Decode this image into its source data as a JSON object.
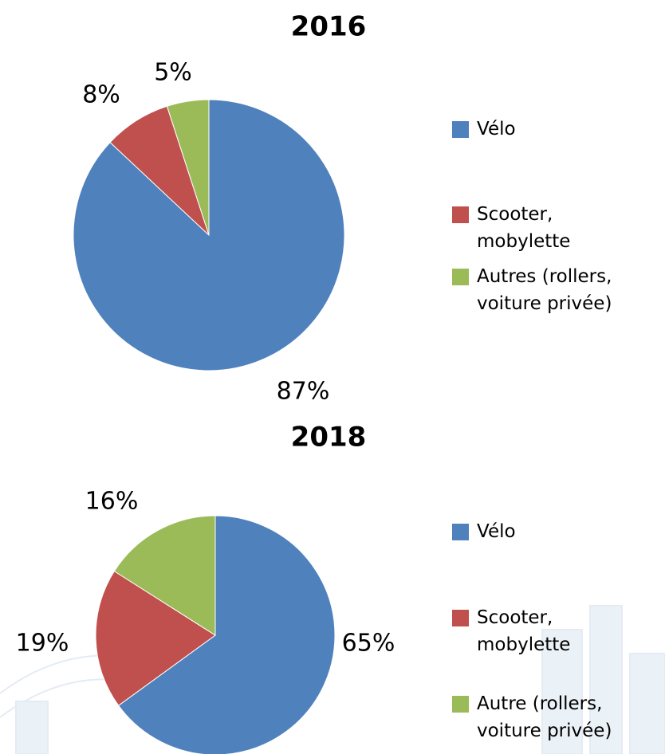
{
  "chart_data": [
    {
      "type": "pie",
      "title": "2016",
      "categories": [
        "Vélo",
        "Scooter, mobylette",
        "Autres (rollers, voiture privée)"
      ],
      "values": [
        87,
        8,
        5
      ],
      "value_labels": [
        "87%",
        "8%",
        "5%"
      ],
      "colors": [
        "#4f81bd",
        "#c0504d",
        "#9bbb59"
      ]
    },
    {
      "type": "pie",
      "title": "2018",
      "categories": [
        "Vélo",
        "Scooter, mobylette",
        "Autre (rollers, voiture privée)"
      ],
      "values": [
        65,
        19,
        16
      ],
      "value_labels": [
        "65%",
        "19%",
        "16%"
      ],
      "colors": [
        "#4f81bd",
        "#c0504d",
        "#9bbb59"
      ]
    }
  ]
}
